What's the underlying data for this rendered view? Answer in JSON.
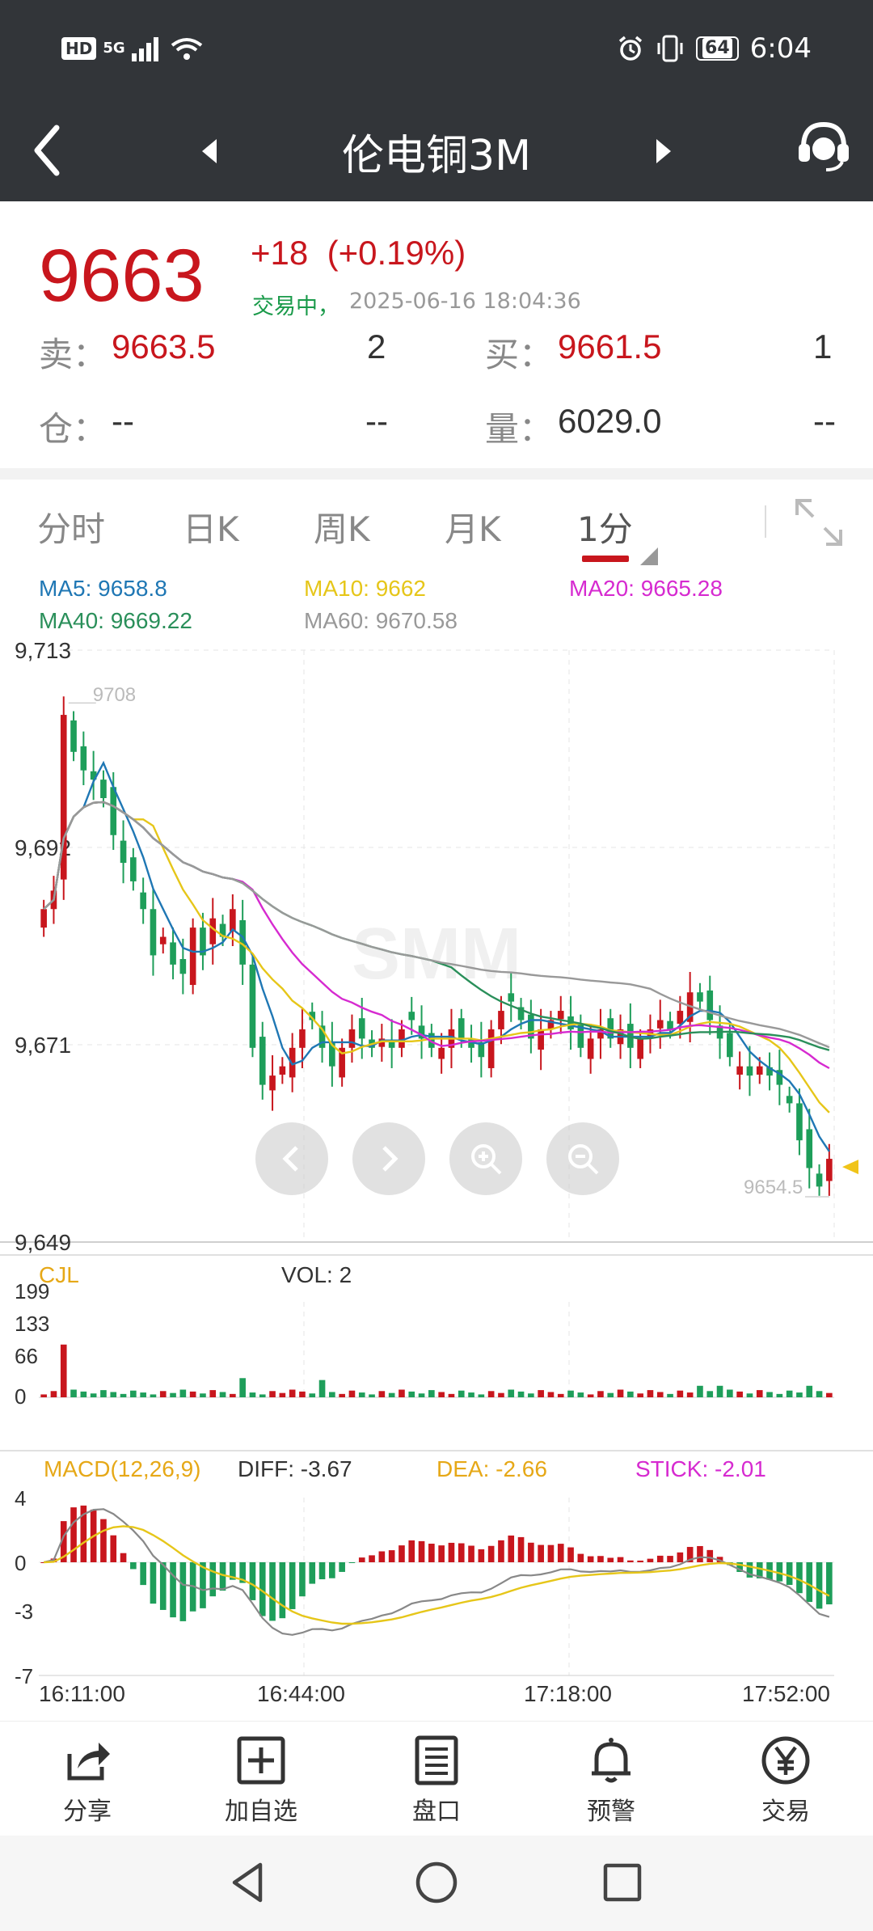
{
  "status_bar": {
    "hd": "HD",
    "signal": "5G",
    "battery": "64",
    "time": "6:04"
  },
  "header": {
    "title": "伦电铜3M"
  },
  "quote": {
    "price": "9663",
    "change": "+18",
    "change_pct": "(+0.19%)",
    "trade_status": "交易中，",
    "trade_time": "2025-06-16 18:04:36",
    "sell_label": "卖：",
    "sell_price": "9663.5",
    "sell_qty": "2",
    "buy_label": "买：",
    "buy_price": "9661.5",
    "buy_qty": "1",
    "oi_label": "仓：",
    "oi_value": "--",
    "oi_change": "--",
    "vol_label": "量：",
    "vol_value": "6029.0",
    "vol_change": "--"
  },
  "tabs": [
    {
      "label": "分时"
    },
    {
      "label": "日K"
    },
    {
      "label": "周K"
    },
    {
      "label": "月K"
    },
    {
      "label": "1分"
    }
  ],
  "ma_legend": {
    "ma5": "MA5: 9658.8",
    "ma10": "MA10: 9662",
    "ma20": "MA20: 9665.28",
    "ma40": "MA40: 9669.22",
    "ma60": "MA60: 9670.58"
  },
  "colors": {
    "up": "#c8161d",
    "down": "#1e9e5a",
    "ma5": "#1f77b4",
    "ma10": "#e6c619",
    "ma20": "#d62ad0",
    "ma40": "#2a8f5a",
    "ma60": "#999999"
  },
  "chart_data": {
    "type": "candlestick",
    "price_axis": {
      "ticks": [
        "9,713",
        "9,692",
        "9,671",
        "9,649"
      ],
      "ylim": [
        9649,
        9713
      ]
    },
    "annotations": {
      "high": "9708",
      "low": "9654.5"
    },
    "x_ticks": [
      "16:11:00",
      "16:44:00",
      "17:18:00",
      "17:52:00"
    ],
    "close": [
      9685,
      9687,
      9706,
      9702,
      9700,
      9699,
      9697,
      9693,
      9690,
      9688,
      9685,
      9680,
      9682,
      9679,
      9678,
      9683,
      9680,
      9684,
      9682,
      9685,
      9679,
      9670,
      9666,
      9667,
      9668,
      9670,
      9672,
      9673,
      9670,
      9668,
      9670,
      9672,
      9671,
      9670,
      9671,
      9670,
      9672,
      9673,
      9671,
      9670,
      9670,
      9672,
      9671,
      9670,
      9669,
      9672,
      9674,
      9675,
      9673,
      9671,
      9672,
      9673,
      9674,
      9672,
      9670,
      9671,
      9672,
      9671,
      9672,
      9670,
      9671,
      9672,
      9673,
      9672,
      9674,
      9676,
      9675,
      9673,
      9671,
      9669,
      9668,
      9667,
      9668,
      9667,
      9666,
      9664,
      9660,
      9657,
      9655,
      9658
    ],
    "volume_axis": {
      "label": "CJL",
      "vol_text": "VOL: 2",
      "ticks": [
        "199",
        "133",
        "66",
        "0"
      ]
    },
    "macd": {
      "title": "MACD(12,26,9)",
      "diff_text": "DIFF: -3.67",
      "dea_text": "DEA: -2.66",
      "stick_text": "STICK: -2.01",
      "ticks": [
        "4",
        "0",
        "-3",
        "-7"
      ]
    }
  },
  "toolbar": [
    {
      "label": "分享",
      "icon": "share-icon"
    },
    {
      "label": "加自选",
      "icon": "add-watchlist-icon"
    },
    {
      "label": "盘口",
      "icon": "orderbook-icon"
    },
    {
      "label": "预警",
      "icon": "bell-icon"
    },
    {
      "label": "交易",
      "icon": "yen-icon"
    }
  ]
}
